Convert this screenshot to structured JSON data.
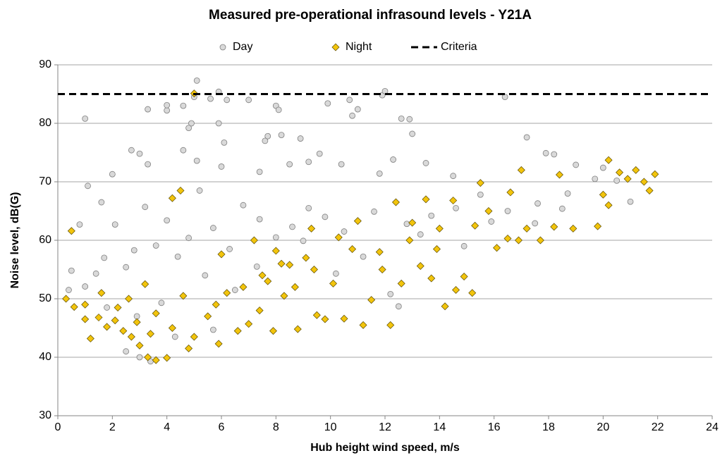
{
  "chart_data": {
    "type": "scatter",
    "title": "Measured pre-operational infrasound levels - Y21A",
    "x_label": "Hub height wind speed, m/s",
    "y_label": "Noise level, dB(G)",
    "xlim": [
      0,
      24
    ],
    "xticks": [
      0,
      2,
      4,
      6,
      8,
      10,
      12,
      14,
      16,
      18,
      20,
      22,
      24
    ],
    "ylim": [
      30,
      90
    ],
    "yticks": [
      30,
      40,
      50,
      60,
      70,
      80,
      90
    ],
    "grid": true,
    "legend": "top",
    "series": [
      {
        "name": "Day",
        "color": "#d9d9d9",
        "marker": "circle",
        "x": [
          1.0,
          3.3,
          4.0,
          4.0,
          4.6,
          4.9,
          4.8,
          5.1,
          5.0,
          5.6,
          5.9,
          6.2,
          5.9,
          6.1,
          7.0,
          7.6,
          7.7,
          8.0,
          8.2,
          8.1,
          8.9,
          9.6,
          9.9,
          10.7,
          10.8,
          11.0,
          11.9,
          12.0,
          12.6,
          12.9,
          13.0,
          16.4,
          17.2,
          17.9,
          18.2,
          19.0,
          20.0,
          21.0,
          20.5,
          19.7,
          18.7,
          17.6,
          16.5,
          15.5,
          14.6,
          13.7,
          12.8,
          11.6,
          10.5,
          9.8,
          9.2,
          8.6,
          8.0,
          7.4,
          6.8,
          6.3,
          5.7,
          5.2,
          4.8,
          4.4,
          4.0,
          3.6,
          3.2,
          2.8,
          2.5,
          2.1,
          1.7,
          1.4,
          1.0,
          0.4,
          0.5,
          0.8,
          1.1,
          1.6,
          2.0,
          2.7,
          3.0,
          3.3,
          4.6,
          5.1,
          6.0,
          7.4,
          8.5,
          9.2,
          10.4,
          11.8,
          12.3,
          13.5,
          14.5,
          3.0,
          3.4,
          2.5,
          4.3,
          5.7,
          3.8,
          12.5,
          12.2,
          10.2,
          11.2,
          9.0,
          7.3,
          6.5,
          5.4,
          2.9,
          1.8,
          14.9,
          13.3,
          15.9,
          17.5,
          18.5
        ],
        "values": [
          80.8,
          82.4,
          82.2,
          83.1,
          83.0,
          80.0,
          79.2,
          87.3,
          84.5,
          84.2,
          85.4,
          84.0,
          80.0,
          76.7,
          84.0,
          77.0,
          77.8,
          83.0,
          78.0,
          82.3,
          77.4,
          74.8,
          83.4,
          84.0,
          81.3,
          82.4,
          84.8,
          85.5,
          80.8,
          80.7,
          78.2,
          84.5,
          77.6,
          74.9,
          74.7,
          72.9,
          72.4,
          66.6,
          70.2,
          70.5,
          68.0,
          66.3,
          65.0,
          67.8,
          65.5,
          64.2,
          62.8,
          64.9,
          61.5,
          64.0,
          65.5,
          62.3,
          60.5,
          63.6,
          66.0,
          58.5,
          62.1,
          68.5,
          60.4,
          57.2,
          63.4,
          59.1,
          65.7,
          58.3,
          55.4,
          62.7,
          57.0,
          54.3,
          52.1,
          51.5,
          54.8,
          62.7,
          69.3,
          66.5,
          71.3,
          75.4,
          74.8,
          73.0,
          75.4,
          73.6,
          72.6,
          71.7,
          73.0,
          73.4,
          73.0,
          71.4,
          73.8,
          73.2,
          71.0,
          40.0,
          39.3,
          41.0,
          43.5,
          44.7,
          49.3,
          48.7,
          50.8,
          54.3,
          57.2,
          59.9,
          55.5,
          51.5,
          54.0,
          47.0,
          48.5,
          59.0,
          61.0,
          63.2,
          62.9,
          65.4
        ]
      },
      {
        "name": "Night",
        "color": "#f2c40c",
        "marker": "diamond",
        "x": [
          0.5,
          0.3,
          0.6,
          1.0,
          1.2,
          1.5,
          1.8,
          2.1,
          2.4,
          2.7,
          3.0,
          3.3,
          3.6,
          4.0,
          3.2,
          2.6,
          4.2,
          4.8,
          5.0,
          5.5,
          5.9,
          6.2,
          6.6,
          7.0,
          7.4,
          7.7,
          7.9,
          8.3,
          8.5,
          8.8,
          9.1,
          9.5,
          9.8,
          10.1,
          10.5,
          10.8,
          11.2,
          11.5,
          11.9,
          12.2,
          12.6,
          13.0,
          13.3,
          13.7,
          14.2,
          14.6,
          14.9,
          15.2,
          15.5,
          15.8,
          16.1,
          16.5,
          16.9,
          17.2,
          17.7,
          18.2,
          18.4,
          18.9,
          19.8,
          20.2,
          20.2,
          20.6,
          20.9,
          21.2,
          21.5,
          21.7,
          21.9,
          20.0,
          17.0,
          16.6,
          5.0,
          4.5,
          4.2,
          6.0,
          7.2,
          8.0,
          9.3,
          10.3,
          11.0,
          11.8,
          12.4,
          13.5,
          14.0,
          14.5,
          15.3,
          3.6,
          2.2,
          1.0,
          8.2,
          8.7,
          7.5,
          9.4,
          6.8,
          5.8,
          4.6,
          3.4,
          2.9,
          1.6,
          12.9,
          13.9
        ],
        "values": [
          61.6,
          50.0,
          48.6,
          46.5,
          43.2,
          46.8,
          45.2,
          46.3,
          44.5,
          43.5,
          42.0,
          40.0,
          39.5,
          39.9,
          52.5,
          50.0,
          45.0,
          41.5,
          43.5,
          47.0,
          42.3,
          51.0,
          44.5,
          45.7,
          48.0,
          53.0,
          44.5,
          50.5,
          55.8,
          44.8,
          57.0,
          47.2,
          46.5,
          52.6,
          46.6,
          58.5,
          45.5,
          49.8,
          55.0,
          45.5,
          52.6,
          63.0,
          55.6,
          53.5,
          48.7,
          51.5,
          53.8,
          51.0,
          69.8,
          65.0,
          58.7,
          60.3,
          60.0,
          62.0,
          60.0,
          62.3,
          71.2,
          62.0,
          62.4,
          73.7,
          66.0,
          71.6,
          70.5,
          72.0,
          70.0,
          68.5,
          71.3,
          67.8,
          72.0,
          68.2,
          85.1,
          68.5,
          67.2,
          57.6,
          60.0,
          58.2,
          62.0,
          60.5,
          63.3,
          58.0,
          66.5,
          67.0,
          62.0,
          66.8,
          62.5,
          47.5,
          48.5,
          49.0,
          56.0,
          52.0,
          54.0,
          55.0,
          52.0,
          49.0,
          50.5,
          44.0,
          46.0,
          51.0,
          60.0,
          58.5
        ]
      },
      {
        "name": "Criteria",
        "color": "#000000",
        "marker": "dashed-line",
        "x": [
          0,
          24
        ],
        "values": [
          85,
          85
        ]
      }
    ]
  }
}
